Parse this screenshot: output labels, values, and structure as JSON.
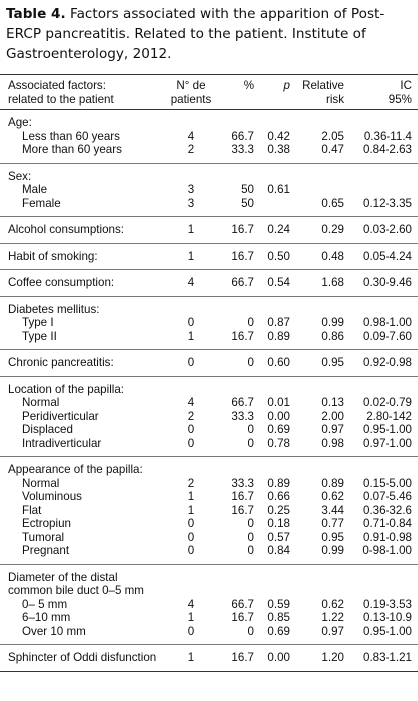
{
  "caption": {
    "label": "Table 4.",
    "text": "Factors associated with the apparition of Post-ERCP pancreatitis. Related to the patient. Institute of Gastroenterology, 2012."
  },
  "table": {
    "header": [
      [
        "Associated factors:",
        "related to the patient"
      ],
      [
        "N° de",
        "patients"
      ],
      [
        "%"
      ],
      [
        "p"
      ],
      [
        "Relative",
        "risk"
      ],
      [
        "IC",
        "95%"
      ]
    ],
    "sections": [
      {
        "heading": "Age:",
        "rows": [
          [
            "Less than 60 years",
            "4",
            "66.7",
            "0.42",
            "2.05",
            "0.36-11.4"
          ],
          [
            "More than 60 years",
            "2",
            "33.3",
            "0.38",
            "0.47",
            "0.84-2.63"
          ]
        ]
      },
      {
        "heading": "Sex:",
        "rows": [
          [
            "Male",
            "3",
            "50",
            "0.61",
            null,
            null
          ],
          [
            "Female",
            "3",
            "50",
            null,
            "0.65",
            "0.12-3.35"
          ]
        ]
      },
      {
        "rows": [
          [
            "Alcohol consumptions:",
            "1",
            "16.7",
            "0.24",
            "0.29",
            "0.03-2.60"
          ]
        ]
      },
      {
        "rows": [
          [
            "Habit of smoking:",
            "1",
            "16.7",
            "0.50",
            "0.48",
            "0.05-4.24"
          ]
        ]
      },
      {
        "rows": [
          [
            "Coffee consumption:",
            "4",
            "66.7",
            "0.54",
            "1.68",
            "0.30-9.46"
          ]
        ]
      },
      {
        "heading": "Diabetes mellitus:",
        "rows": [
          [
            "Type I",
            "0",
            "0",
            "0.87",
            "0.99",
            "0.98-1.00"
          ],
          [
            "Type II",
            "1",
            "16.7",
            "0.89",
            "0.86",
            "0.09-7.60"
          ]
        ]
      },
      {
        "rows": [
          [
            "Chronic pancreatitis:",
            "0",
            "0",
            "0.60",
            "0.95",
            "0.92-0.98"
          ]
        ]
      },
      {
        "heading": "Location of the papilla:",
        "rows": [
          [
            "Normal",
            "4",
            "66.7",
            "0.01",
            "0.13",
            "0.02-0.79"
          ],
          [
            "Peridiverticular",
            "2",
            "33.3",
            "0.00",
            "2.00",
            "2.80-142"
          ],
          [
            "Displaced",
            "0",
            "0",
            "0.69",
            "0.97",
            "0.95-1.00"
          ],
          [
            "Intradiverticular",
            "0",
            "0",
            "0.78",
            "0.98",
            "0.97-1.00"
          ]
        ]
      },
      {
        "heading": "Appearance of the papilla:",
        "rows": [
          [
            "Normal",
            "2",
            "33.3",
            "0.89",
            "0.89",
            "0.15-5.00"
          ],
          [
            "Voluminous",
            "1",
            "16.7",
            "0.66",
            "0.62",
            "0.07-5.46"
          ],
          [
            "Flat",
            "1",
            "16.7",
            "0.25",
            "3.44",
            "0.36-32.6"
          ],
          [
            "Ectropiun",
            "0",
            "0",
            "0.18",
            "0.77",
            "0.71-0.84"
          ],
          [
            "Tumoral",
            "0",
            "0",
            "0.57",
            "0.95",
            "0.91-0.98"
          ],
          [
            "Pregnant",
            "0",
            "0",
            "0.84",
            "0.99",
            "0-98-1.00"
          ]
        ]
      },
      {
        "heading": [
          "Diameter of the distal",
          "common bile duct 0–5 mm"
        ],
        "rows": [
          [
            "0– 5 mm",
            "4",
            "66.7",
            "0.59",
            "0.62",
            "0.19-3.53"
          ],
          [
            "6–10 mm",
            "1",
            "16.7",
            "0.85",
            "1.22",
            "0.13-10.9"
          ],
          [
            "Over 10 mm",
            "0",
            "0",
            "0.69",
            "0.97",
            "0.95-1.00"
          ]
        ]
      },
      {
        "rows": [
          [
            "Sphincter of Oddi disfunction",
            "1",
            "16.7",
            "0.00",
            "1.20",
            "0.83-1.21"
          ]
        ]
      }
    ]
  }
}
